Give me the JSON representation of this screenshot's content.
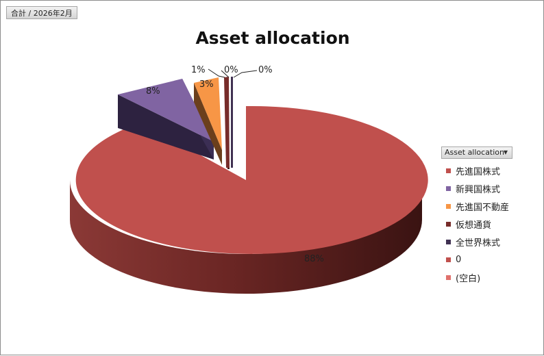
{
  "pivot_tag": "合計 / 2026年2月",
  "legend_button": "Asset allocation",
  "chart_data": {
    "type": "pie",
    "title": "Asset allocation",
    "legend_position": "right",
    "categories": [
      "先進国株式",
      "新興国株式",
      "先進国不動産",
      "仮想通貨",
      "全世界株式",
      "0",
      "(空白)"
    ],
    "values": [
      88,
      8,
      3,
      1,
      0,
      0,
      0
    ],
    "data_labels": [
      "88%",
      "8%",
      "3%",
      "1%",
      "0%",
      "0%",
      ""
    ],
    "colors": [
      "#c0504d",
      "#8064a2",
      "#f79646",
      "#772c2a",
      "#403152",
      "#c0504d",
      "#e0716c"
    ]
  }
}
